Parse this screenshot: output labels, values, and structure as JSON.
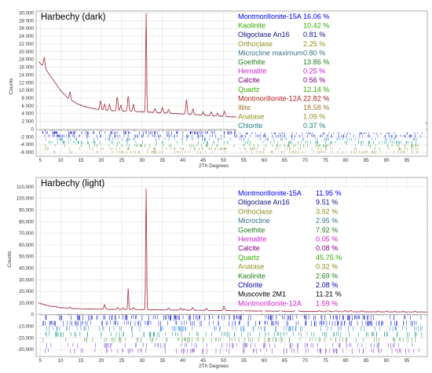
{
  "chart_data": [
    {
      "type": "line",
      "title": "Harbechy (dark)",
      "xlabel": "2Th Degrees",
      "ylabel": "Counts",
      "xlim": [
        4,
        100
      ],
      "ylim": [
        -7000,
        30500
      ],
      "xticks": [
        5,
        10,
        15,
        20,
        25,
        30,
        35,
        40,
        45,
        50,
        55,
        60,
        65,
        70,
        75,
        80,
        85,
        90,
        95
      ],
      "yticks": [
        -6000,
        -4000,
        -2000,
        0,
        2000,
        4000,
        6000,
        8000,
        10000,
        12000,
        14000,
        16000,
        18000,
        20000,
        22000,
        24000,
        26000,
        28000,
        30000
      ],
      "ytick_labels": [
        "-6 000",
        "-4 000",
        "-2 000",
        "0",
        "2 000",
        "4 000",
        "6 000",
        "8 000",
        "10 000",
        "12 000",
        "14 000",
        "16 000",
        "18 000",
        "20 000",
        "22 000",
        "24 000",
        "26 000",
        "28 000",
        "30,000"
      ],
      "grid": true,
      "legend_position": "top-right",
      "baseline": {
        "x": [
          4,
          6,
          8,
          10,
          12,
          14,
          16,
          18,
          20,
          22,
          25,
          30,
          35,
          40,
          50,
          60,
          70,
          80,
          90,
          100
        ],
        "y": [
          18000,
          16000,
          13000,
          10000,
          7800,
          6600,
          5800,
          5300,
          5000,
          4800,
          4700,
          4500,
          4200,
          3900,
          3300,
          2800,
          2400,
          2100,
          1800,
          1600
        ]
      },
      "peaks": [
        [
          6.0,
          2500
        ],
        [
          12.3,
          2000
        ],
        [
          19.8,
          2200
        ],
        [
          20.8,
          1500
        ],
        [
          22.0,
          1600
        ],
        [
          23.9,
          3500
        ],
        [
          24.8,
          1500
        ],
        [
          26.6,
          3800
        ],
        [
          27.9,
          1800
        ],
        [
          31.0,
          25500
        ],
        [
          33.2,
          1000
        ],
        [
          35.0,
          1400
        ],
        [
          36.5,
          1000
        ],
        [
          40.9,
          3700
        ],
        [
          42.5,
          1500
        ],
        [
          45.0,
          900
        ],
        [
          47.0,
          1000
        ],
        [
          48.5,
          700
        ],
        [
          50.2,
          1300
        ],
        [
          54.0,
          700
        ],
        [
          59.0,
          2100
        ],
        [
          60.5,
          700
        ],
        [
          63.0,
          900
        ],
        [
          67.0,
          700
        ],
        [
          70.3,
          2000
        ],
        [
          73.5,
          1300
        ],
        [
          76.5,
          1000
        ],
        [
          81.0,
          1200
        ],
        [
          82.5,
          800
        ],
        [
          85.0,
          700
        ],
        [
          88.0,
          600
        ],
        [
          92.0,
          500
        ],
        [
          96.0,
          500
        ]
      ],
      "reference_colors": [
        "#1a22c8",
        "#2a3cd8",
        "#3e8fe0",
        "#22a08a",
        "#4fa64a",
        "#8ea85a",
        "#b8a45c"
      ],
      "legend_value_x": 386,
      "legend": [
        {
          "name": "Montmorillonite-15A",
          "value": "16.06 %",
          "color": "#0000ee"
        },
        {
          "name": "Kaolinite",
          "value": "10.42 %",
          "color": "#33aa00"
        },
        {
          "name": "Oligoclase An16",
          "value": "0.81 %",
          "color": "#101080"
        },
        {
          "name": "Orthoclase",
          "value": "2.25 %",
          "color": "#909020"
        },
        {
          "name": "Microcline maximum",
          "value": "0.80 %",
          "color": "#3a6f88"
        },
        {
          "name": "Goethite",
          "value": "13.86 %",
          "color": "#208020"
        },
        {
          "name": "Hematite",
          "value": "0.25 %",
          "color": "#cc22cc"
        },
        {
          "name": "Calcite",
          "value": "0.56 %",
          "color": "#800080"
        },
        {
          "name": "Quartz",
          "value": "12.14 %",
          "color": "#33aa00"
        },
        {
          "name": "Montmorillonite-12A",
          "value": "22.82 %",
          "color": "#aa2020"
        },
        {
          "name": "Illite",
          "value": "18.58 %",
          "color": "#a07830"
        },
        {
          "name": "Anatase",
          "value": "1.09 %",
          "color": "#909020"
        },
        {
          "name": "Chlorite",
          "value": "0.37 %",
          "color": "#208080"
        }
      ]
    },
    {
      "type": "line",
      "title": "Harbechy (light)",
      "xlabel": "2Th Degrees",
      "ylabel": "Counts",
      "xlim": [
        4,
        100
      ],
      "ylim": [
        -36000,
        118000
      ],
      "xticks": [
        5,
        10,
        15,
        20,
        25,
        30,
        35,
        40,
        45,
        50,
        55,
        60,
        65,
        70,
        75,
        80,
        85,
        90,
        95
      ],
      "yticks": [
        -30000,
        -20000,
        -10000,
        0,
        10000,
        20000,
        30000,
        40000,
        50000,
        60000,
        70000,
        80000,
        90000,
        100000,
        110000
      ],
      "ytick_labels": [
        "-30,000",
        "-20,000",
        "-10,000",
        "0",
        "10,000",
        "20,000",
        "30,000",
        "40,000",
        "50,000",
        "60,000",
        "70,000",
        "80,000",
        "90,000",
        "100,000",
        "110,000"
      ],
      "grid": true,
      "legend_position": "top-right",
      "baseline": {
        "x": [
          4,
          6,
          8,
          10,
          12,
          15,
          20,
          25,
          30,
          40,
          50,
          60,
          70,
          80,
          90,
          100
        ],
        "y": [
          11000,
          8500,
          7000,
          6000,
          5500,
          5000,
          4700,
          4500,
          4300,
          3900,
          3500,
          3100,
          2800,
          2600,
          2400,
          2300
        ]
      },
      "peaks": [
        [
          8.8,
          800
        ],
        [
          12.3,
          1200
        ],
        [
          20.8,
          4000
        ],
        [
          24.0,
          1500
        ],
        [
          25.3,
          1200
        ],
        [
          26.6,
          18000
        ],
        [
          27.9,
          1800
        ],
        [
          31.0,
          104000
        ],
        [
          36.5,
          1800
        ],
        [
          39.5,
          1500
        ],
        [
          40.3,
          1000
        ],
        [
          42.4,
          2400
        ],
        [
          45.8,
          1700
        ],
        [
          50.1,
          3800
        ],
        [
          54.9,
          1500
        ],
        [
          59.9,
          4500
        ],
        [
          64.0,
          1200
        ],
        [
          67.7,
          2800
        ],
        [
          68.2,
          1800
        ],
        [
          73.5,
          800
        ],
        [
          75.6,
          1200
        ],
        [
          77.6,
          1000
        ],
        [
          79.9,
          900
        ],
        [
          81.2,
          1100
        ],
        [
          84.0,
          800
        ],
        [
          88.0,
          600
        ],
        [
          90.0,
          800
        ],
        [
          92.0,
          500
        ],
        [
          94.0,
          600
        ],
        [
          97.0,
          500
        ]
      ],
      "reference_colors": [
        "#1a22c8",
        "#2a3cd8",
        "#3e8fe0",
        "#22a08a",
        "#6aa860",
        "#7a5ad0",
        "#9a50c8"
      ],
      "legend_value_x": 402,
      "legend": [
        {
          "name": "Montmorillonite-15A",
          "value": "11.95 %",
          "color": "#0000ee"
        },
        {
          "name": "Oligoclase An16",
          "value": "9.51 %",
          "color": "#101080"
        },
        {
          "name": "Orthoclase",
          "value": "3.92 %",
          "color": "#909020"
        },
        {
          "name": "Microcline",
          "value": "2.95 %",
          "color": "#3a6f88"
        },
        {
          "name": "Goethite",
          "value": "7.92 %",
          "color": "#208020"
        },
        {
          "name": "Hematite",
          "value": "0.05 %",
          "color": "#cc22cc"
        },
        {
          "name": "Calcite",
          "value": "0.08 %",
          "color": "#800080"
        },
        {
          "name": "Quartz",
          "value": "45.75 %",
          "color": "#33aa00"
        },
        {
          "name": "Anatase",
          "value": "0.32 %",
          "color": "#909020"
        },
        {
          "name": "Kaolinite",
          "value": "2.69 %",
          "color": "#208020"
        },
        {
          "name": "Chlorite",
          "value": "2.08 %",
          "color": "#0000aa"
        },
        {
          "name": "Muscovite 2M1",
          "value": "11.21 %",
          "color": "#000000"
        },
        {
          "name": "Montmorillonite-12A",
          "value": "1.59 %",
          "color": "#cc22cc"
        }
      ]
    }
  ]
}
